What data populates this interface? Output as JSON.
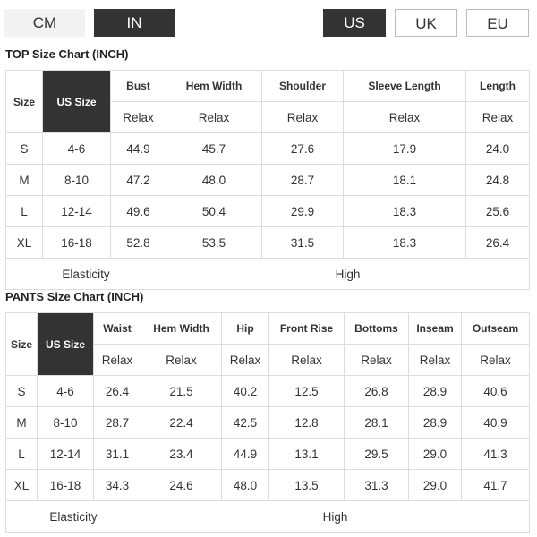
{
  "units": [
    "CM",
    "IN"
  ],
  "regions": [
    "US",
    "UK",
    "EU"
  ],
  "top": {
    "title": "TOP Size Chart (INCH)",
    "header": [
      "Size",
      "US Size",
      "Bust",
      "Hem Width",
      "Shoulder",
      "Sleeve Length",
      "Length"
    ],
    "subheader": [
      "Relax",
      "Relax",
      "Relax",
      "Relax",
      "Relax"
    ],
    "rows": [
      [
        "S",
        "4-6",
        "44.9",
        "45.7",
        "27.6",
        "17.9",
        "24.0"
      ],
      [
        "M",
        "8-10",
        "47.2",
        "48.0",
        "28.7",
        "18.1",
        "24.8"
      ],
      [
        "L",
        "12-14",
        "49.6",
        "50.4",
        "29.9",
        "18.3",
        "25.6"
      ],
      [
        "XL",
        "16-18",
        "52.8",
        "53.5",
        "31.5",
        "18.3",
        "26.4"
      ]
    ],
    "footer": [
      "Elasticity",
      "High"
    ]
  },
  "pants": {
    "title": "PANTS Size Chart (INCH)",
    "header": [
      "Size",
      "US Size",
      "Waist",
      "Hem Width",
      "Hip",
      "Front Rise",
      "Bottoms",
      "Inseam",
      "Outseam"
    ],
    "subheader": [
      "Relax",
      "Relax",
      "Relax",
      "Relax",
      "Relax",
      "Relax",
      "Relax"
    ],
    "rows": [
      [
        "S",
        "4-6",
        "26.4",
        "21.5",
        "40.2",
        "12.5",
        "26.8",
        "28.9",
        "40.6"
      ],
      [
        "M",
        "8-10",
        "28.7",
        "22.4",
        "42.5",
        "12.8",
        "28.1",
        "28.9",
        "40.9"
      ],
      [
        "L",
        "12-14",
        "31.1",
        "23.4",
        "44.9",
        "13.1",
        "29.5",
        "29.0",
        "41.3"
      ],
      [
        "XL",
        "16-18",
        "34.3",
        "24.6",
        "48.0",
        "13.5",
        "31.3",
        "29.0",
        "41.7"
      ]
    ],
    "footer": [
      "Elasticity",
      "High"
    ]
  }
}
